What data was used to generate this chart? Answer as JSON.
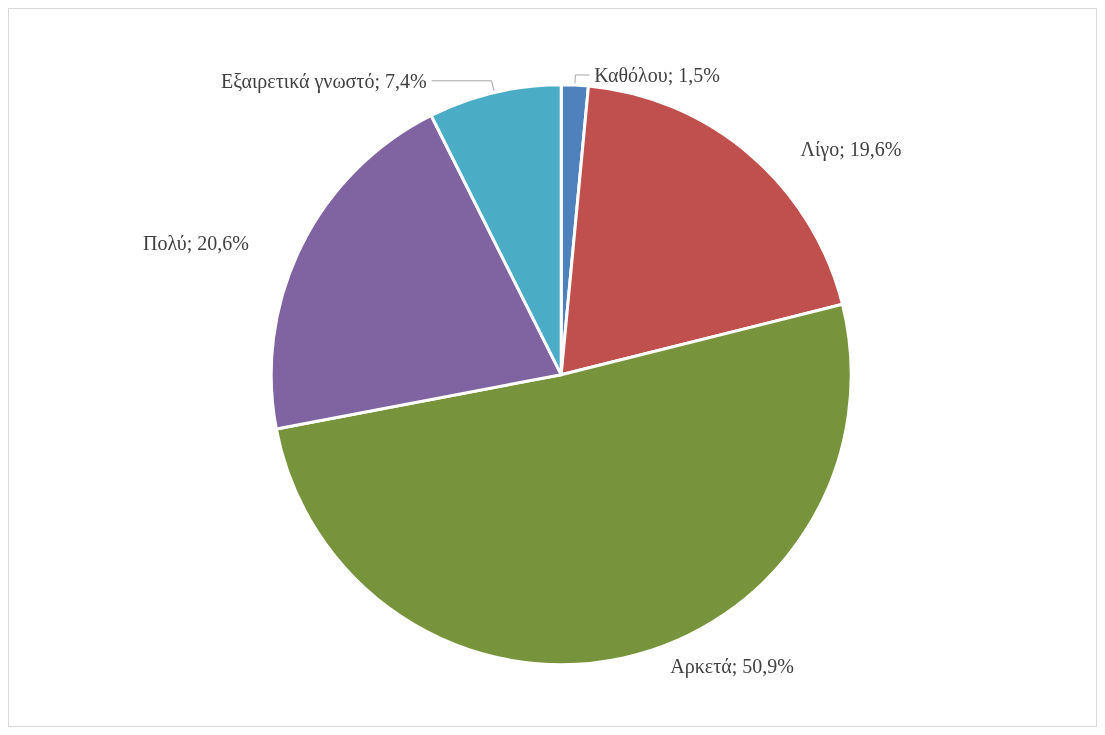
{
  "chart_data": {
    "type": "pie",
    "categories": [
      "Καθόλου",
      "Λίγο",
      "Αρκετά",
      "Πολύ",
      "Εξαιρετικά γνωστό"
    ],
    "values": [
      1.5,
      19.6,
      50.9,
      20.6,
      7.4
    ],
    "value_labels": [
      "1,5%",
      "19,6%",
      "50,9%",
      "20,6%",
      "7,4%"
    ],
    "colors": [
      "#4f81bd",
      "#c0504d",
      "#77933c",
      "#8064a2",
      "#4bacc6"
    ],
    "legend": false
  }
}
